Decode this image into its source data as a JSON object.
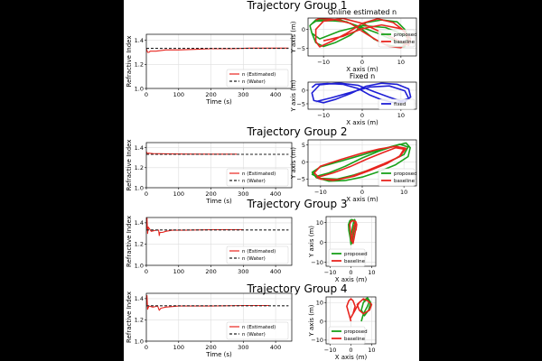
{
  "groups": [
    {
      "title": "Trajectory Group 1"
    },
    {
      "title": "Trajectory Group 2"
    },
    {
      "title": "Trajectory Group 3"
    },
    {
      "title": "Trajectory Group 4"
    }
  ],
  "colors": {
    "estimated": "#e8251f",
    "water": "#222222",
    "proposed": "#1aa11a",
    "baseline": "#e8251f",
    "fixed": "#1f1fd6"
  },
  "chart_data": [
    {
      "type": "line",
      "id": "ri1",
      "group": 0,
      "xlabel": "Time (s)",
      "ylabel": "Refractive Index",
      "xlim": [
        0,
        450
      ],
      "ylim": [
        1.0,
        1.45
      ],
      "xticks": [
        0,
        100,
        200,
        300,
        400
      ],
      "yticks": [
        1.0,
        1.2,
        1.4
      ],
      "xtick_labels": [
        "0",
        "100",
        "200",
        "300",
        "400"
      ],
      "ytick_labels": [
        "1.0",
        "1.2",
        "1.4"
      ],
      "grid": true,
      "legend": "lower-right",
      "series": [
        {
          "name": "n (Estimated)",
          "style": "solid",
          "x": [
            0,
            4,
            8,
            12,
            30,
            60,
            100,
            150,
            200,
            260,
            320,
            380,
            440
          ],
          "y": [
            1.33,
            1.3,
            1.3,
            1.31,
            1.31,
            1.32,
            1.32,
            1.325,
            1.33,
            1.33,
            1.335,
            1.335,
            1.335
          ]
        },
        {
          "name": "n (Water)",
          "style": "dashed",
          "x": [
            0,
            440
          ],
          "y": [
            1.333,
            1.333
          ]
        }
      ]
    },
    {
      "type": "line",
      "id": "ri2",
      "group": 1,
      "xlabel": "Time (s)",
      "ylabel": "Refractive Index",
      "xlim": [
        0,
        450
      ],
      "ylim": [
        1.0,
        1.45
      ],
      "xticks": [
        0,
        100,
        200,
        300,
        400
      ],
      "yticks": [
        1.0,
        1.2,
        1.4
      ],
      "xtick_labels": [
        "0",
        "100",
        "200",
        "300",
        "400"
      ],
      "ytick_labels": [
        "1.0",
        "1.2",
        "1.4"
      ],
      "grid": true,
      "legend": "lower-right",
      "series": [
        {
          "name": "n (Estimated)",
          "style": "solid",
          "x": [
            0,
            3,
            6,
            20,
            60,
            120,
            200,
            280
          ],
          "y": [
            1.36,
            1.34,
            1.345,
            1.34,
            1.338,
            1.336,
            1.335,
            1.335
          ]
        },
        {
          "name": "n (Water)",
          "style": "dashed",
          "x": [
            0,
            440
          ],
          "y": [
            1.333,
            1.333
          ]
        }
      ]
    },
    {
      "type": "line",
      "id": "ri3",
      "group": 2,
      "xlabel": "",
      "ylabel": "Refractive Index",
      "xlim": [
        0,
        450
      ],
      "ylim": [
        1.0,
        1.45
      ],
      "xticks": [
        0,
        100,
        200,
        300,
        400
      ],
      "yticks": [
        1.0,
        1.2,
        1.4
      ],
      "xtick_labels": [
        "0",
        "100",
        "200",
        "300",
        "400"
      ],
      "ytick_labels": [
        "1.0",
        "1.2",
        "1.4"
      ],
      "grid": true,
      "legend": "lower-right",
      "series": [
        {
          "name": "n (Estimated)",
          "style": "solid",
          "x": [
            0,
            2,
            4,
            6,
            15,
            30,
            38,
            40,
            42,
            50,
            60,
            80,
            120,
            200,
            300
          ],
          "y": [
            1.34,
            1.45,
            1.3,
            1.36,
            1.32,
            1.33,
            1.33,
            1.28,
            1.31,
            1.31,
            1.32,
            1.33,
            1.33,
            1.335,
            1.335
          ]
        },
        {
          "name": "n (Water)",
          "style": "dashed",
          "x": [
            0,
            440
          ],
          "y": [
            1.333,
            1.333
          ]
        }
      ]
    },
    {
      "type": "line",
      "id": "ri4",
      "group": 3,
      "xlabel": "Time (s)",
      "ylabel": "Refractive Index",
      "xlim": [
        0,
        450
      ],
      "ylim": [
        1.0,
        1.45
      ],
      "xticks": [
        0,
        100,
        200,
        300,
        400
      ],
      "yticks": [
        1.0,
        1.2,
        1.4
      ],
      "xtick_labels": [
        "0",
        "100",
        "200",
        "300",
        "400"
      ],
      "ytick_labels": [
        "1.0",
        "1.2",
        "1.4"
      ],
      "grid": true,
      "legend": "lower-right",
      "series": [
        {
          "name": "n (Estimated)",
          "style": "solid",
          "x": [
            0,
            2,
            4,
            8,
            20,
            35,
            40,
            45,
            60,
            100,
            200,
            300,
            380
          ],
          "y": [
            1.34,
            1.43,
            1.3,
            1.33,
            1.32,
            1.33,
            1.29,
            1.31,
            1.32,
            1.33,
            1.33,
            1.335,
            1.335
          ]
        },
        {
          "name": "n (Water)",
          "style": "dashed",
          "x": [
            0,
            440
          ],
          "y": [
            1.333,
            1.333
          ]
        }
      ]
    },
    {
      "type": "line",
      "id": "tr1",
      "group": 0,
      "title": "Online estimated n",
      "xlabel": "X axis (m)",
      "ylabel": "Y axis (m)",
      "xlim": [
        -14,
        14
      ],
      "ylim": [
        -7,
        3
      ],
      "xticks": [
        -10,
        0,
        10
      ],
      "yticks": [
        -5,
        0
      ],
      "xtick_labels": [
        "−10",
        "0",
        "10"
      ],
      "ytick_labels": [
        "−5",
        "0"
      ],
      "grid": true,
      "legend": "right",
      "series": [
        {
          "name": "proposed",
          "x": [
            -13,
            -12,
            -8,
            -4,
            0,
            3,
            6,
            9,
            11,
            12,
            11,
            9,
            5,
            1,
            -3,
            -7,
            -10,
            -12,
            -13,
            -13.5,
            -12,
            -6,
            0,
            4,
            8,
            11,
            12.5,
            11,
            6,
            0,
            -6,
            -11,
            -13
          ],
          "y": [
            1.5,
            2.2,
            2.3,
            2.0,
            0,
            -2.5,
            -4,
            -4.6,
            -4.5,
            -2,
            0,
            2,
            2.5,
            1.8,
            -1.5,
            -3.5,
            -4.5,
            -3.5,
            -1,
            1,
            2.5,
            2.6,
            0.5,
            -1,
            -2.8,
            -4,
            -3.2,
            -1.5,
            0.5,
            1,
            -0.5,
            -2.5,
            -1
          ]
        },
        {
          "name": "baseline",
          "x": [
            -12,
            -11,
            -7,
            -3,
            0,
            4,
            7,
            10,
            12,
            11,
            8,
            4,
            0,
            -4,
            -8,
            -11,
            -12,
            -12,
            -10,
            -5,
            0,
            5,
            9,
            12,
            12.5,
            10,
            5,
            0,
            -5,
            -10
          ],
          "y": [
            2.5,
            2.9,
            2.6,
            1.6,
            -0.5,
            -3,
            -4.5,
            -4.8,
            -3.2,
            -0.5,
            1.8,
            2.8,
            1.6,
            -1,
            -3.2,
            -4.6,
            -3.2,
            0,
            2.2,
            2.9,
            1.6,
            -0.8,
            -2.8,
            -4.2,
            -2.4,
            0.2,
            1.2,
            0.2,
            -1.8,
            -3
          ]
        }
      ]
    },
    {
      "type": "line",
      "id": "tr1b",
      "group": 0,
      "title": "Fixed n",
      "xlabel": "X axis (m)",
      "ylabel": "Y axis (m)",
      "xlim": [
        -14,
        14
      ],
      "ylim": [
        -7,
        3
      ],
      "xticks": [
        -10,
        0,
        10
      ],
      "yticks": [
        -5,
        0
      ],
      "xtick_labels": [
        "−10",
        "0",
        "10"
      ],
      "ytick_labels": [
        "−5",
        "0"
      ],
      "grid": true,
      "legend": "lower-right",
      "series": [
        {
          "name": "fixed",
          "x": [
            -13,
            -12,
            -9,
            -5,
            -1,
            2,
            5,
            8,
            11,
            12.5,
            12,
            9,
            5,
            1,
            -3,
            -7,
            -10,
            -12.5,
            -13,
            -11,
            -6,
            -1,
            3,
            7,
            10,
            12,
            11,
            7,
            2,
            -3,
            -8,
            -12
          ],
          "y": [
            1.0,
            2.2,
            2.5,
            2.2,
            0.6,
            -1.8,
            -3.5,
            -4.5,
            -4.3,
            -2.5,
            0.5,
            2.2,
            2.6,
            1.5,
            -1.2,
            -3.4,
            -4.6,
            -3.8,
            -1,
            2.0,
            2.7,
            1.8,
            -0.5,
            -2.6,
            -4.0,
            -3.0,
            -0.2,
            1.6,
            1.2,
            -0.8,
            -2.8,
            -4.2
          ]
        }
      ]
    },
    {
      "type": "line",
      "id": "tr2",
      "group": 1,
      "xlabel": "X axis (m)",
      "ylabel": "Y axis (m)",
      "xlim": [
        -13,
        13
      ],
      "ylim": [
        -7,
        6.5
      ],
      "xticks": [
        -10,
        0,
        10
      ],
      "yticks": [
        -5,
        0,
        5
      ],
      "xtick_labels": [
        "−10",
        "0",
        "10"
      ],
      "ytick_labels": [
        "−5",
        "0",
        "5"
      ],
      "grid": true,
      "legend": "lower-right",
      "series": [
        {
          "name": "proposed",
          "x": [
            -11,
            -8,
            -4,
            0,
            4,
            8,
            10.5,
            11.5,
            11,
            8,
            4,
            0,
            -4,
            -8,
            -11,
            -12,
            -10,
            -6,
            -2,
            2,
            6,
            9,
            11,
            10,
            6,
            2,
            -2,
            -6,
            -10,
            -12,
            -11
          ],
          "y": [
            -4.2,
            -3.2,
            -1.2,
            1.2,
            3.2,
            4.8,
            5.6,
            4.2,
            1.6,
            -0.8,
            -2.8,
            -4.4,
            -5.4,
            -5.6,
            -4.6,
            -3,
            -1.4,
            0,
            1.4,
            2.8,
            4.2,
            5.2,
            4.4,
            2.2,
            -0.2,
            -2.2,
            -3.8,
            -5,
            -4.8,
            -3.6,
            -2.4
          ]
        },
        {
          "name": "baseline",
          "x": [
            -11,
            -7,
            -3,
            1,
            5,
            8,
            10,
            9,
            6,
            2,
            -2,
            -6,
            -10,
            -11.5,
            -10,
            -5,
            0,
            4,
            8,
            10.5,
            9,
            5,
            1,
            -3,
            -7,
            -10.5
          ],
          "y": [
            -4.6,
            -3.2,
            -1.4,
            0.8,
            2.8,
            4.2,
            3.8,
            1.8,
            -0.4,
            -2.4,
            -4.2,
            -5.2,
            -5.0,
            -3.2,
            -1.2,
            0.8,
            2.6,
            3.8,
            4.6,
            4.0,
            1.6,
            -0.6,
            -2.6,
            -4.4,
            -5.4,
            -4.8
          ]
        }
      ]
    },
    {
      "type": "line",
      "id": "tr3",
      "group": 2,
      "xlabel": "X axis (m)",
      "ylabel": "Y axis (m)",
      "xlim": [
        -12,
        12
      ],
      "ylim": [
        -12,
        13
      ],
      "xticks": [
        -10,
        0,
        10
      ],
      "yticks": [
        -10,
        0,
        10
      ],
      "xtick_labels": [
        "−10",
        "0",
        "10"
      ],
      "ytick_labels": [
        "−10",
        "0",
        "10"
      ],
      "grid": true,
      "legend": "lower-left",
      "series": [
        {
          "name": "proposed",
          "x": [
            0,
            -0.5,
            -1,
            -1.2,
            -0.5,
            0.5,
            1.5,
            2,
            1.5,
            1,
            0.5,
            0,
            -0.3,
            0.5,
            1.2,
            1.8,
            2.2,
            1.6
          ],
          "y": [
            0,
            3,
            6,
            9,
            11,
            11.5,
            11,
            9,
            6,
            3,
            0,
            -1,
            2,
            6,
            10,
            11.5,
            10,
            7
          ]
        },
        {
          "name": "baseline",
          "x": [
            0.2,
            0,
            -0.3,
            -0.6,
            0,
            1,
            2,
            2.5,
            2,
            1.5,
            1,
            0.5,
            0.8,
            1.5,
            2.3,
            2.8,
            2.4
          ],
          "y": [
            0.5,
            3,
            6,
            9,
            10.5,
            11,
            10.5,
            8,
            5,
            2,
            -0.5,
            1,
            4,
            8,
            10.5,
            9,
            6
          ]
        }
      ]
    },
    {
      "type": "line",
      "id": "tr4",
      "group": 3,
      "xlabel": "X axis (m)",
      "ylabel": "Y axis (m)",
      "xlim": [
        -12,
        12
      ],
      "ylim": [
        -12,
        13
      ],
      "xticks": [
        -10,
        0,
        10
      ],
      "yticks": [
        -10,
        0,
        10
      ],
      "xtick_labels": [
        "−10",
        "0",
        "10"
      ],
      "ytick_labels": [
        "−10",
        "0",
        "10"
      ],
      "grid": true,
      "legend": "lower-left",
      "series": [
        {
          "name": "proposed",
          "x": [
            5,
            6,
            8,
            9,
            8,
            6,
            5,
            6.5,
            8.5,
            9.5,
            8,
            6
          ],
          "y": [
            0,
            4,
            8,
            11,
            12,
            10,
            6,
            3,
            6,
            10,
            12.5,
            11
          ]
        },
        {
          "name": "baseline",
          "x": [
            0,
            -1,
            -2,
            -1,
            0,
            1,
            2,
            1,
            0,
            2,
            4,
            6,
            8,
            10,
            9,
            6,
            4,
            3,
            5
          ],
          "y": [
            0,
            4,
            8,
            11,
            12,
            11,
            8,
            4,
            2,
            6,
            10,
            12,
            11,
            9,
            6,
            4,
            6,
            9,
            11
          ]
        }
      ]
    }
  ]
}
